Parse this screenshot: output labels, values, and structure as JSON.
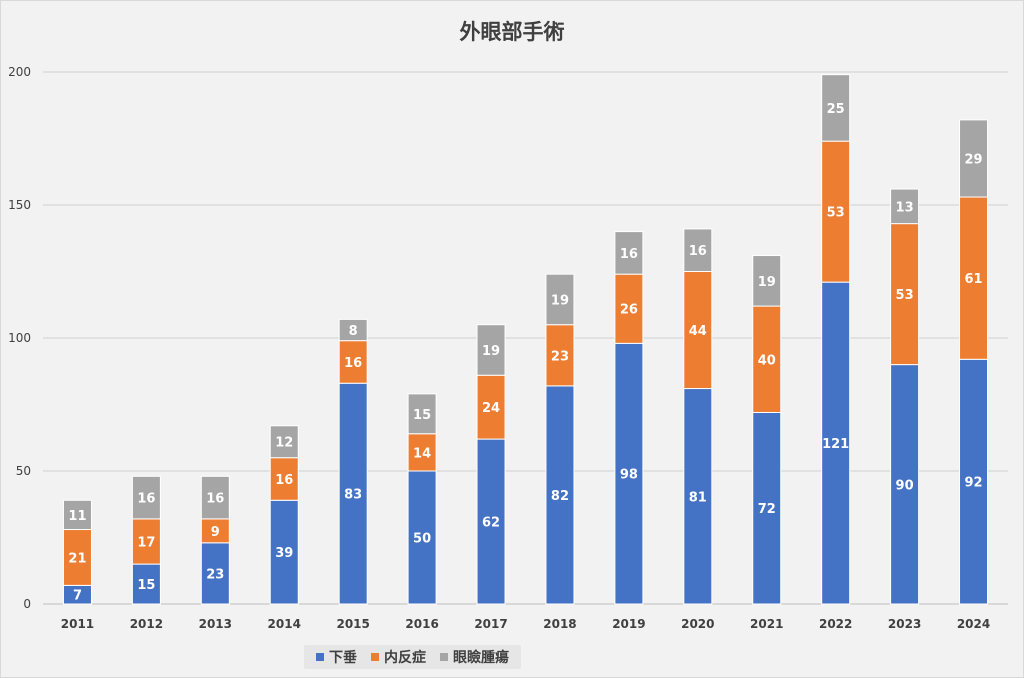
{
  "chart_data": {
    "type": "bar",
    "stacked": true,
    "title": "外眼部手術",
    "categories": [
      "2011",
      "2012",
      "2013",
      "2014",
      "2015",
      "2016",
      "2017",
      "2018",
      "2019",
      "2020",
      "2021",
      "2022",
      "2023",
      "2024"
    ],
    "series": [
      {
        "name": "下垂",
        "color": "#4472C4",
        "values": [
          7,
          15,
          23,
          39,
          83,
          50,
          62,
          82,
          98,
          81,
          72,
          121,
          90,
          92
        ]
      },
      {
        "name": "内反症",
        "color": "#ED7D31",
        "values": [
          21,
          17,
          9,
          16,
          16,
          14,
          24,
          23,
          26,
          44,
          40,
          53,
          53,
          61
        ]
      },
      {
        "name": "眼瞼腫瘍",
        "color": "#A5A5A5",
        "values": [
          11,
          16,
          16,
          12,
          8,
          15,
          19,
          19,
          16,
          16,
          19,
          25,
          13,
          29
        ]
      }
    ],
    "ylim": [
      0,
      200
    ],
    "yticks": [
      0,
      50,
      100,
      150,
      200
    ],
    "grid": true,
    "legend_position": "bottom",
    "data_labels": true
  }
}
